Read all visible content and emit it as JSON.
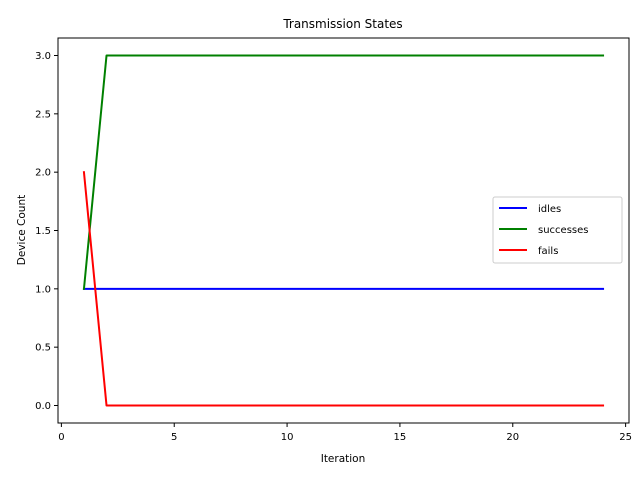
{
  "chart_data": {
    "type": "line",
    "title": "Transmission States",
    "xlabel": "Iteration",
    "ylabel": "Device Count",
    "xlim": [
      -0.15,
      25.15
    ],
    "ylim": [
      -0.15,
      3.15
    ],
    "xticks": [
      0,
      5,
      10,
      15,
      20,
      25
    ],
    "yticks": [
      0.0,
      0.5,
      1.0,
      1.5,
      2.0,
      2.5,
      3.0
    ],
    "xtick_labels": [
      "0",
      "5",
      "10",
      "15",
      "20",
      "25"
    ],
    "ytick_labels": [
      "0.0",
      "0.5",
      "1.0",
      "1.5",
      "2.0",
      "2.5",
      "3.0"
    ],
    "grid": false,
    "legend_position": "center-right",
    "x": [
      1,
      2,
      3,
      4,
      5,
      6,
      7,
      8,
      9,
      10,
      11,
      12,
      13,
      14,
      15,
      16,
      17,
      18,
      19,
      20,
      21,
      22,
      23,
      24
    ],
    "series": [
      {
        "name": "idles",
        "color": "#0000ff",
        "values": [
          1,
          1,
          1,
          1,
          1,
          1,
          1,
          1,
          1,
          1,
          1,
          1,
          1,
          1,
          1,
          1,
          1,
          1,
          1,
          1,
          1,
          1,
          1,
          1
        ]
      },
      {
        "name": "successes",
        "color": "#008000",
        "values": [
          1,
          3,
          3,
          3,
          3,
          3,
          3,
          3,
          3,
          3,
          3,
          3,
          3,
          3,
          3,
          3,
          3,
          3,
          3,
          3,
          3,
          3,
          3,
          3
        ]
      },
      {
        "name": "fails",
        "color": "#ff0000",
        "values": [
          2,
          0,
          0,
          0,
          0,
          0,
          0,
          0,
          0,
          0,
          0,
          0,
          0,
          0,
          0,
          0,
          0,
          0,
          0,
          0,
          0,
          0,
          0,
          0
        ]
      }
    ]
  }
}
